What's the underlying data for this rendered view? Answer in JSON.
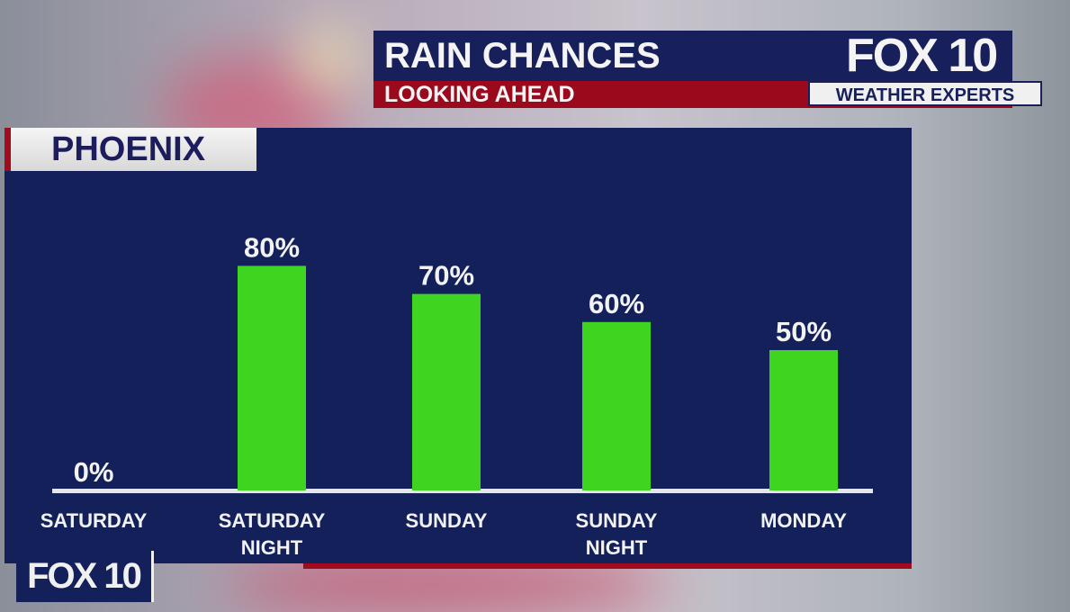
{
  "header": {
    "title": "RAIN CHANCES",
    "subtitle": "LOOKING AHEAD",
    "brand": "FOX 10",
    "brand_tag": "WEATHER EXPERTS"
  },
  "location": "PHOENIX",
  "footer_brand": "FOX 10",
  "colors": {
    "panel": "#14205a",
    "bar": "#3fd420",
    "accent_red": "#9b0a1c"
  },
  "chart_data": {
    "type": "bar",
    "title": "RAIN CHANCES",
    "categories": [
      [
        "SATURDAY"
      ],
      [
        "SATURDAY",
        "NIGHT"
      ],
      [
        "SUNDAY"
      ],
      [
        "SUNDAY",
        "NIGHT"
      ],
      [
        "MONDAY"
      ]
    ],
    "values": [
      0,
      80,
      70,
      60,
      50
    ],
    "data_labels": [
      "0%",
      "80%",
      "70%",
      "60%",
      "50%"
    ],
    "ylim": [
      0,
      100
    ],
    "grid": false
  }
}
